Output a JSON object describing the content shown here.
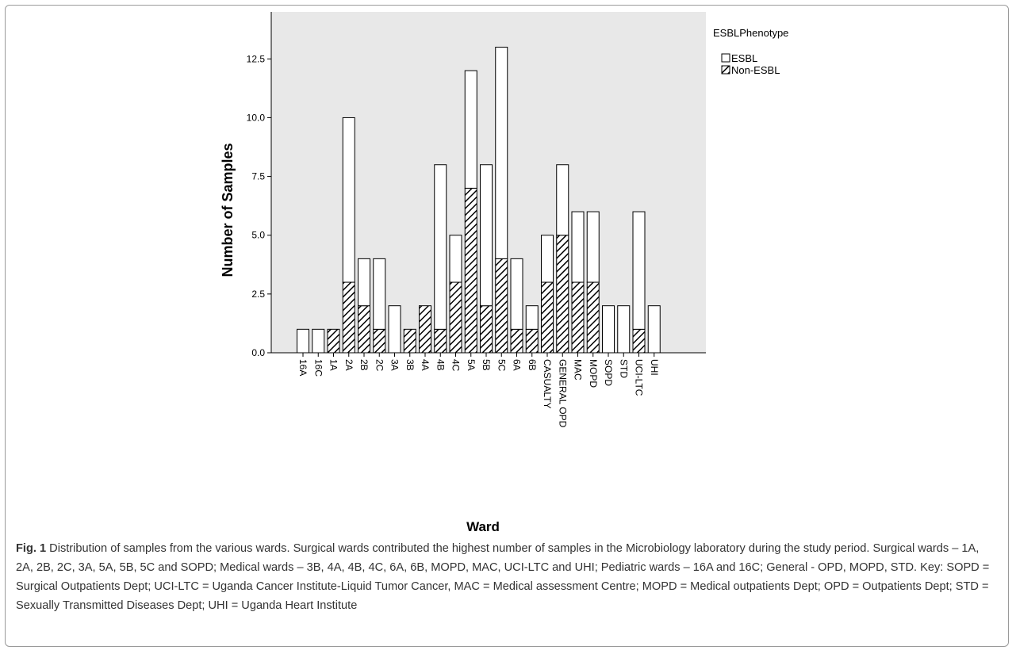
{
  "chart_data": {
    "type": "bar",
    "stacked": true,
    "categories": [
      "16A",
      "16C",
      "1A",
      "2A",
      "2B",
      "2C",
      "3A",
      "3B",
      "4A",
      "4B",
      "4C",
      "5A",
      "5B",
      "5C",
      "6A",
      "6B",
      "CASUALTY",
      "GENERAL OPD",
      "MAC",
      "MOPD",
      "SOPD",
      "STD",
      "UCI-LTC",
      "UHI"
    ],
    "series": [
      {
        "name": "Non-ESBL",
        "pattern": "diagonal-hatch",
        "values": [
          0,
          0,
          1,
          3,
          2,
          1,
          0,
          1,
          2,
          1,
          3,
          7,
          2,
          4,
          1,
          1,
          3,
          5,
          3,
          3,
          0,
          0,
          1,
          0
        ]
      },
      {
        "name": "ESBL",
        "pattern": "white",
        "values": [
          1,
          1,
          0,
          7,
          2,
          3,
          2,
          0,
          0,
          7,
          2,
          5,
          6,
          9,
          3,
          1,
          2,
          3,
          3,
          3,
          2,
          2,
          5,
          2
        ]
      }
    ],
    "title": "",
    "xlabel": "Ward",
    "ylabel": "Number of Samples",
    "ylim": [
      0,
      14.5
    ],
    "yticks": [
      0.0,
      2.5,
      5.0,
      7.5,
      10.0,
      12.5
    ],
    "ytick_labels": [
      "0.0",
      "2.5",
      "5.0",
      "7.5",
      "10.0",
      "12.5"
    ],
    "legend": {
      "title": "ESBLPhenotype",
      "placement": "right",
      "entries": [
        "ESBL",
        "Non-ESBL"
      ]
    },
    "grid": false,
    "colors": {
      "plot_background": "#e8e8e8",
      "bar_fill": "#ffffff",
      "bar_stroke": "#000000",
      "hatch": "#000000"
    }
  },
  "caption": {
    "label": "Fig. 1",
    "text": "Distribution of samples from the various wards. Surgical wards contributed the highest number of samples in the Microbiology laboratory during the study period. Surgical wards – 1A, 2A, 2B, 2C, 3A, 5A, 5B, 5C and SOPD; Medical wards – 3B, 4A, 4B, 4C, 6A, 6B, MOPD, MAC, UCI-LTC and UHI; Pediatric wards – 16A and 16C; General - OPD, MOPD, STD. Key: SOPD = Surgical Outpatients Dept; UCI-LTC = Uganda Cancer Institute-Liquid Tumor Cancer, MAC = Medical assessment Centre; MOPD = Medical outpatients Dept; OPD = Outpatients Dept; STD = Sexually Transmitted Diseases Dept; UHI = Uganda Heart Institute"
  }
}
